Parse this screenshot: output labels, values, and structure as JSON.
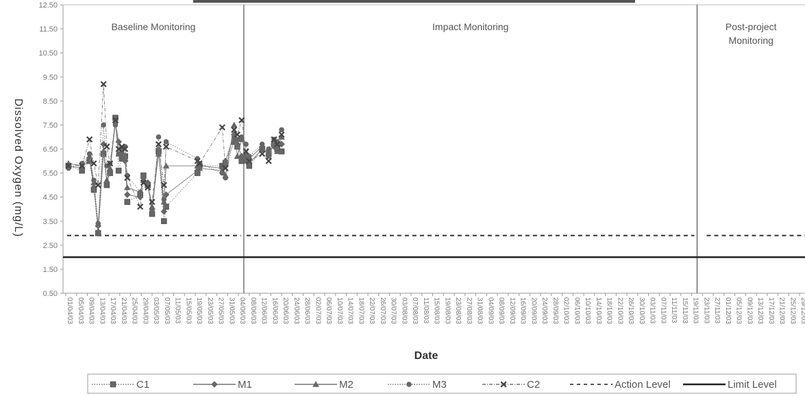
{
  "chart_data": {
    "type": "line",
    "ylabel": "Dissolved Oxygen (mg/L)",
    "xlabel": "Date",
    "ylim": [
      0.5,
      12.5
    ],
    "yticks": [
      "0.50",
      "1.50",
      "2.50",
      "3.50",
      "4.50",
      "5.50",
      "6.50",
      "7.50",
      "8.50",
      "9.50",
      "10.50",
      "11.50",
      "12.50"
    ],
    "xticks": [
      "01/04/03",
      "05/04/03",
      "09/04/03",
      "13/04/03",
      "17/04/03",
      "21/04/03",
      "25/04/03",
      "29/04/03",
      "03/05/03",
      "07/05/03",
      "11/05/03",
      "15/05/03",
      "19/05/03",
      "23/05/03",
      "27/05/03",
      "31/05/03",
      "04/06/03",
      "08/06/03",
      "12/06/03",
      "16/06/03",
      "20/06/03",
      "24/06/03",
      "28/06/03",
      "02/07/03",
      "06/07/03",
      "10/07/03",
      "14/07/03",
      "18/07/03",
      "22/07/03",
      "26/07/03",
      "30/07/03",
      "03/08/03",
      "07/08/03",
      "11/08/03",
      "15/08/03",
      "19/08/03",
      "23/08/03",
      "27/08/03",
      "31/08/03",
      "04/09/03",
      "08/09/03",
      "12/09/03",
      "16/09/03",
      "20/09/03",
      "24/09/03",
      "28/09/03",
      "02/10/03",
      "06/10/03",
      "10/10/03",
      "14/10/03",
      "18/10/03",
      "22/10/03",
      "26/10/03",
      "30/10/03",
      "03/11/03",
      "07/11/03",
      "11/11/03",
      "15/11/03",
      "19/11/03",
      "23/11/03",
      "27/11/03",
      "01/12/03",
      "05/12/03",
      "09/12/03",
      "13/12/03",
      "17/12/03",
      "21/12/03",
      "25/12/03",
      "29/12/03"
    ],
    "x_first_date": "01/04/03",
    "x_step_days": 4,
    "phases": [
      {
        "label_lines": [
          "Baseline Monitoring"
        ],
        "start_tick": 0,
        "end_tick": 17
      },
      {
        "label_lines": [
          "Impact Monitoring"
        ],
        "start_tick": 17,
        "end_tick": 59
      },
      {
        "label_lines": [
          "Post-project",
          "Monitoring"
        ],
        "start_tick": 59,
        "end_tick": 69
      }
    ],
    "action_level": 2.9,
    "limit_level": 2.0,
    "series": [
      {
        "name": "C1",
        "marker": "square",
        "color": "#555555",
        "points": [
          [
            0.25,
            5.8
          ],
          [
            1.5,
            5.6
          ],
          [
            2.2,
            6.0
          ],
          [
            2.6,
            4.8
          ],
          [
            3.0,
            3.0
          ],
          [
            3.5,
            6.3
          ],
          [
            3.8,
            5.0
          ],
          [
            4.1,
            5.5
          ],
          [
            4.6,
            7.8
          ],
          [
            4.9,
            5.6
          ],
          [
            5.2,
            6.1
          ],
          [
            5.5,
            6.2
          ],
          [
            5.7,
            4.3
          ],
          [
            6.9,
            4.6
          ],
          [
            7.2,
            5.4
          ],
          [
            7.6,
            5.0
          ],
          [
            8.0,
            3.8
          ],
          [
            8.6,
            6.4
          ],
          [
            9.1,
            3.5
          ],
          [
            9.3,
            4.1
          ],
          [
            12.2,
            5.5
          ],
          [
            12.4,
            5.8
          ],
          [
            14.5,
            5.8
          ],
          [
            14.8,
            5.9
          ],
          [
            15.6,
            6.8
          ],
          [
            15.9,
            6.6
          ],
          [
            16.3,
            6.0
          ],
          [
            16.7,
            6.1
          ],
          [
            17.0,
            5.8
          ],
          [
            18.2,
            6.5
          ],
          [
            18.8,
            6.3
          ],
          [
            19.3,
            6.7
          ],
          [
            19.6,
            6.5
          ],
          [
            20.0,
            6.4
          ]
        ]
      },
      {
        "name": "M1",
        "marker": "diamond",
        "color": "#555555",
        "points": [
          [
            0.25,
            5.8
          ],
          [
            1.5,
            5.7
          ],
          [
            2.2,
            6.1
          ],
          [
            2.6,
            4.9
          ],
          [
            3.0,
            3.3
          ],
          [
            3.5,
            6.7
          ],
          [
            3.8,
            5.1
          ],
          [
            4.1,
            5.6
          ],
          [
            4.6,
            7.6
          ],
          [
            4.9,
            6.8
          ],
          [
            5.2,
            6.2
          ],
          [
            5.5,
            6.0
          ],
          [
            5.7,
            4.6
          ],
          [
            6.9,
            4.5
          ],
          [
            7.2,
            5.3
          ],
          [
            7.6,
            5.1
          ],
          [
            8.0,
            4.0
          ],
          [
            8.6,
            6.5
          ],
          [
            9.1,
            3.9
          ],
          [
            9.3,
            4.6
          ],
          [
            12.2,
            5.6
          ],
          [
            12.4,
            5.8
          ],
          [
            14.5,
            5.7
          ],
          [
            14.8,
            6.0
          ],
          [
            15.6,
            7.1
          ],
          [
            15.9,
            6.7
          ],
          [
            16.3,
            6.2
          ],
          [
            16.7,
            6.0
          ],
          [
            17.0,
            5.9
          ],
          [
            18.2,
            6.5
          ],
          [
            18.8,
            6.4
          ],
          [
            19.3,
            6.6
          ],
          [
            19.6,
            6.6
          ],
          [
            20.0,
            6.7
          ]
        ]
      },
      {
        "name": "M2",
        "marker": "triangle",
        "color": "#555555",
        "points": [
          [
            0.25,
            5.9
          ],
          [
            1.5,
            5.8
          ],
          [
            2.2,
            6.2
          ],
          [
            2.6,
            5.1
          ],
          [
            3.0,
            3.1
          ],
          [
            3.5,
            6.4
          ],
          [
            3.8,
            5.2
          ],
          [
            4.1,
            5.7
          ],
          [
            4.6,
            7.7
          ],
          [
            4.9,
            6.3
          ],
          [
            5.2,
            6.4
          ],
          [
            5.5,
            6.1
          ],
          [
            5.7,
            4.9
          ],
          [
            6.9,
            4.7
          ],
          [
            7.2,
            5.2
          ],
          [
            7.6,
            5.0
          ],
          [
            8.0,
            4.1
          ],
          [
            8.6,
            6.3
          ],
          [
            9.1,
            4.3
          ],
          [
            9.3,
            5.8
          ],
          [
            12.2,
            5.8
          ],
          [
            12.4,
            5.7
          ],
          [
            14.5,
            5.6
          ],
          [
            14.8,
            5.4
          ],
          [
            15.6,
            7.5
          ],
          [
            15.9,
            6.2
          ],
          [
            16.3,
            6.9
          ],
          [
            16.7,
            6.3
          ],
          [
            17.0,
            6.1
          ],
          [
            18.2,
            6.6
          ],
          [
            18.8,
            6.2
          ],
          [
            19.3,
            6.8
          ],
          [
            19.6,
            6.4
          ],
          [
            20.0,
            7.0
          ]
        ]
      },
      {
        "name": "M3",
        "marker": "circle",
        "color": "#555555",
        "points": [
          [
            0.25,
            5.7
          ],
          [
            1.5,
            5.9
          ],
          [
            2.2,
            6.3
          ],
          [
            2.6,
            5.2
          ],
          [
            3.0,
            3.4
          ],
          [
            3.5,
            7.5
          ],
          [
            3.8,
            5.8
          ],
          [
            4.1,
            5.9
          ],
          [
            4.6,
            7.5
          ],
          [
            4.9,
            6.3
          ],
          [
            5.2,
            6.5
          ],
          [
            5.5,
            6.6
          ],
          [
            5.7,
            5.4
          ],
          [
            6.9,
            4.7
          ],
          [
            7.2,
            5.3
          ],
          [
            7.6,
            5.0
          ],
          [
            8.0,
            3.9
          ],
          [
            8.6,
            7.0
          ],
          [
            9.1,
            4.4
          ],
          [
            9.3,
            6.8
          ],
          [
            12.2,
            6.1
          ],
          [
            12.4,
            5.9
          ],
          [
            14.5,
            5.5
          ],
          [
            14.8,
            5.3
          ],
          [
            15.6,
            7.0
          ],
          [
            15.9,
            6.9
          ],
          [
            16.3,
            7.0
          ],
          [
            16.7,
            6.7
          ],
          [
            17.0,
            6.2
          ],
          [
            18.2,
            6.7
          ],
          [
            18.8,
            6.5
          ],
          [
            19.3,
            6.9
          ],
          [
            19.6,
            6.8
          ],
          [
            20.0,
            7.3
          ]
        ]
      },
      {
        "name": "C2",
        "marker": "cross",
        "color": "#555555",
        "points": [
          [
            0.25,
            5.8
          ],
          [
            1.5,
            5.8
          ],
          [
            2.2,
            6.9
          ],
          [
            2.6,
            5.9
          ],
          [
            3.0,
            5.0
          ],
          [
            3.5,
            9.2
          ],
          [
            3.8,
            6.6
          ],
          [
            4.1,
            5.9
          ],
          [
            4.6,
            7.7
          ],
          [
            4.9,
            6.5
          ],
          [
            5.2,
            6.6
          ],
          [
            5.5,
            6.5
          ],
          [
            5.7,
            5.3
          ],
          [
            6.9,
            4.1
          ],
          [
            7.2,
            5.1
          ],
          [
            7.6,
            4.9
          ],
          [
            8.0,
            4.3
          ],
          [
            8.6,
            6.7
          ],
          [
            9.1,
            5.0
          ],
          [
            9.3,
            6.6
          ],
          [
            12.2,
            6.0
          ],
          [
            12.4,
            5.9
          ],
          [
            14.5,
            7.4
          ],
          [
            14.8,
            5.7
          ],
          [
            15.6,
            7.3
          ],
          [
            15.9,
            7.1
          ],
          [
            16.3,
            7.7
          ],
          [
            16.7,
            6.4
          ],
          [
            17.0,
            6.0
          ],
          [
            18.2,
            6.3
          ],
          [
            18.8,
            6.0
          ],
          [
            19.3,
            6.9
          ],
          [
            19.6,
            6.7
          ],
          [
            20.0,
            7.1
          ]
        ]
      }
    ],
    "legend": [
      {
        "label": "C1",
        "marker": "square",
        "line": "dotted"
      },
      {
        "label": "M1",
        "marker": "diamond",
        "line": "solid"
      },
      {
        "label": "M2",
        "marker": "triangle",
        "line": "solid"
      },
      {
        "label": "M3",
        "marker": "circle",
        "line": "dotted"
      },
      {
        "label": "C2",
        "marker": "cross",
        "line": "dashdot"
      },
      {
        "label": "Action Level",
        "marker": "none",
        "line": "dashed"
      },
      {
        "label": "Limit Level",
        "marker": "none",
        "line": "solid-thick"
      }
    ],
    "legend_position": "bottom",
    "grid": false
  }
}
